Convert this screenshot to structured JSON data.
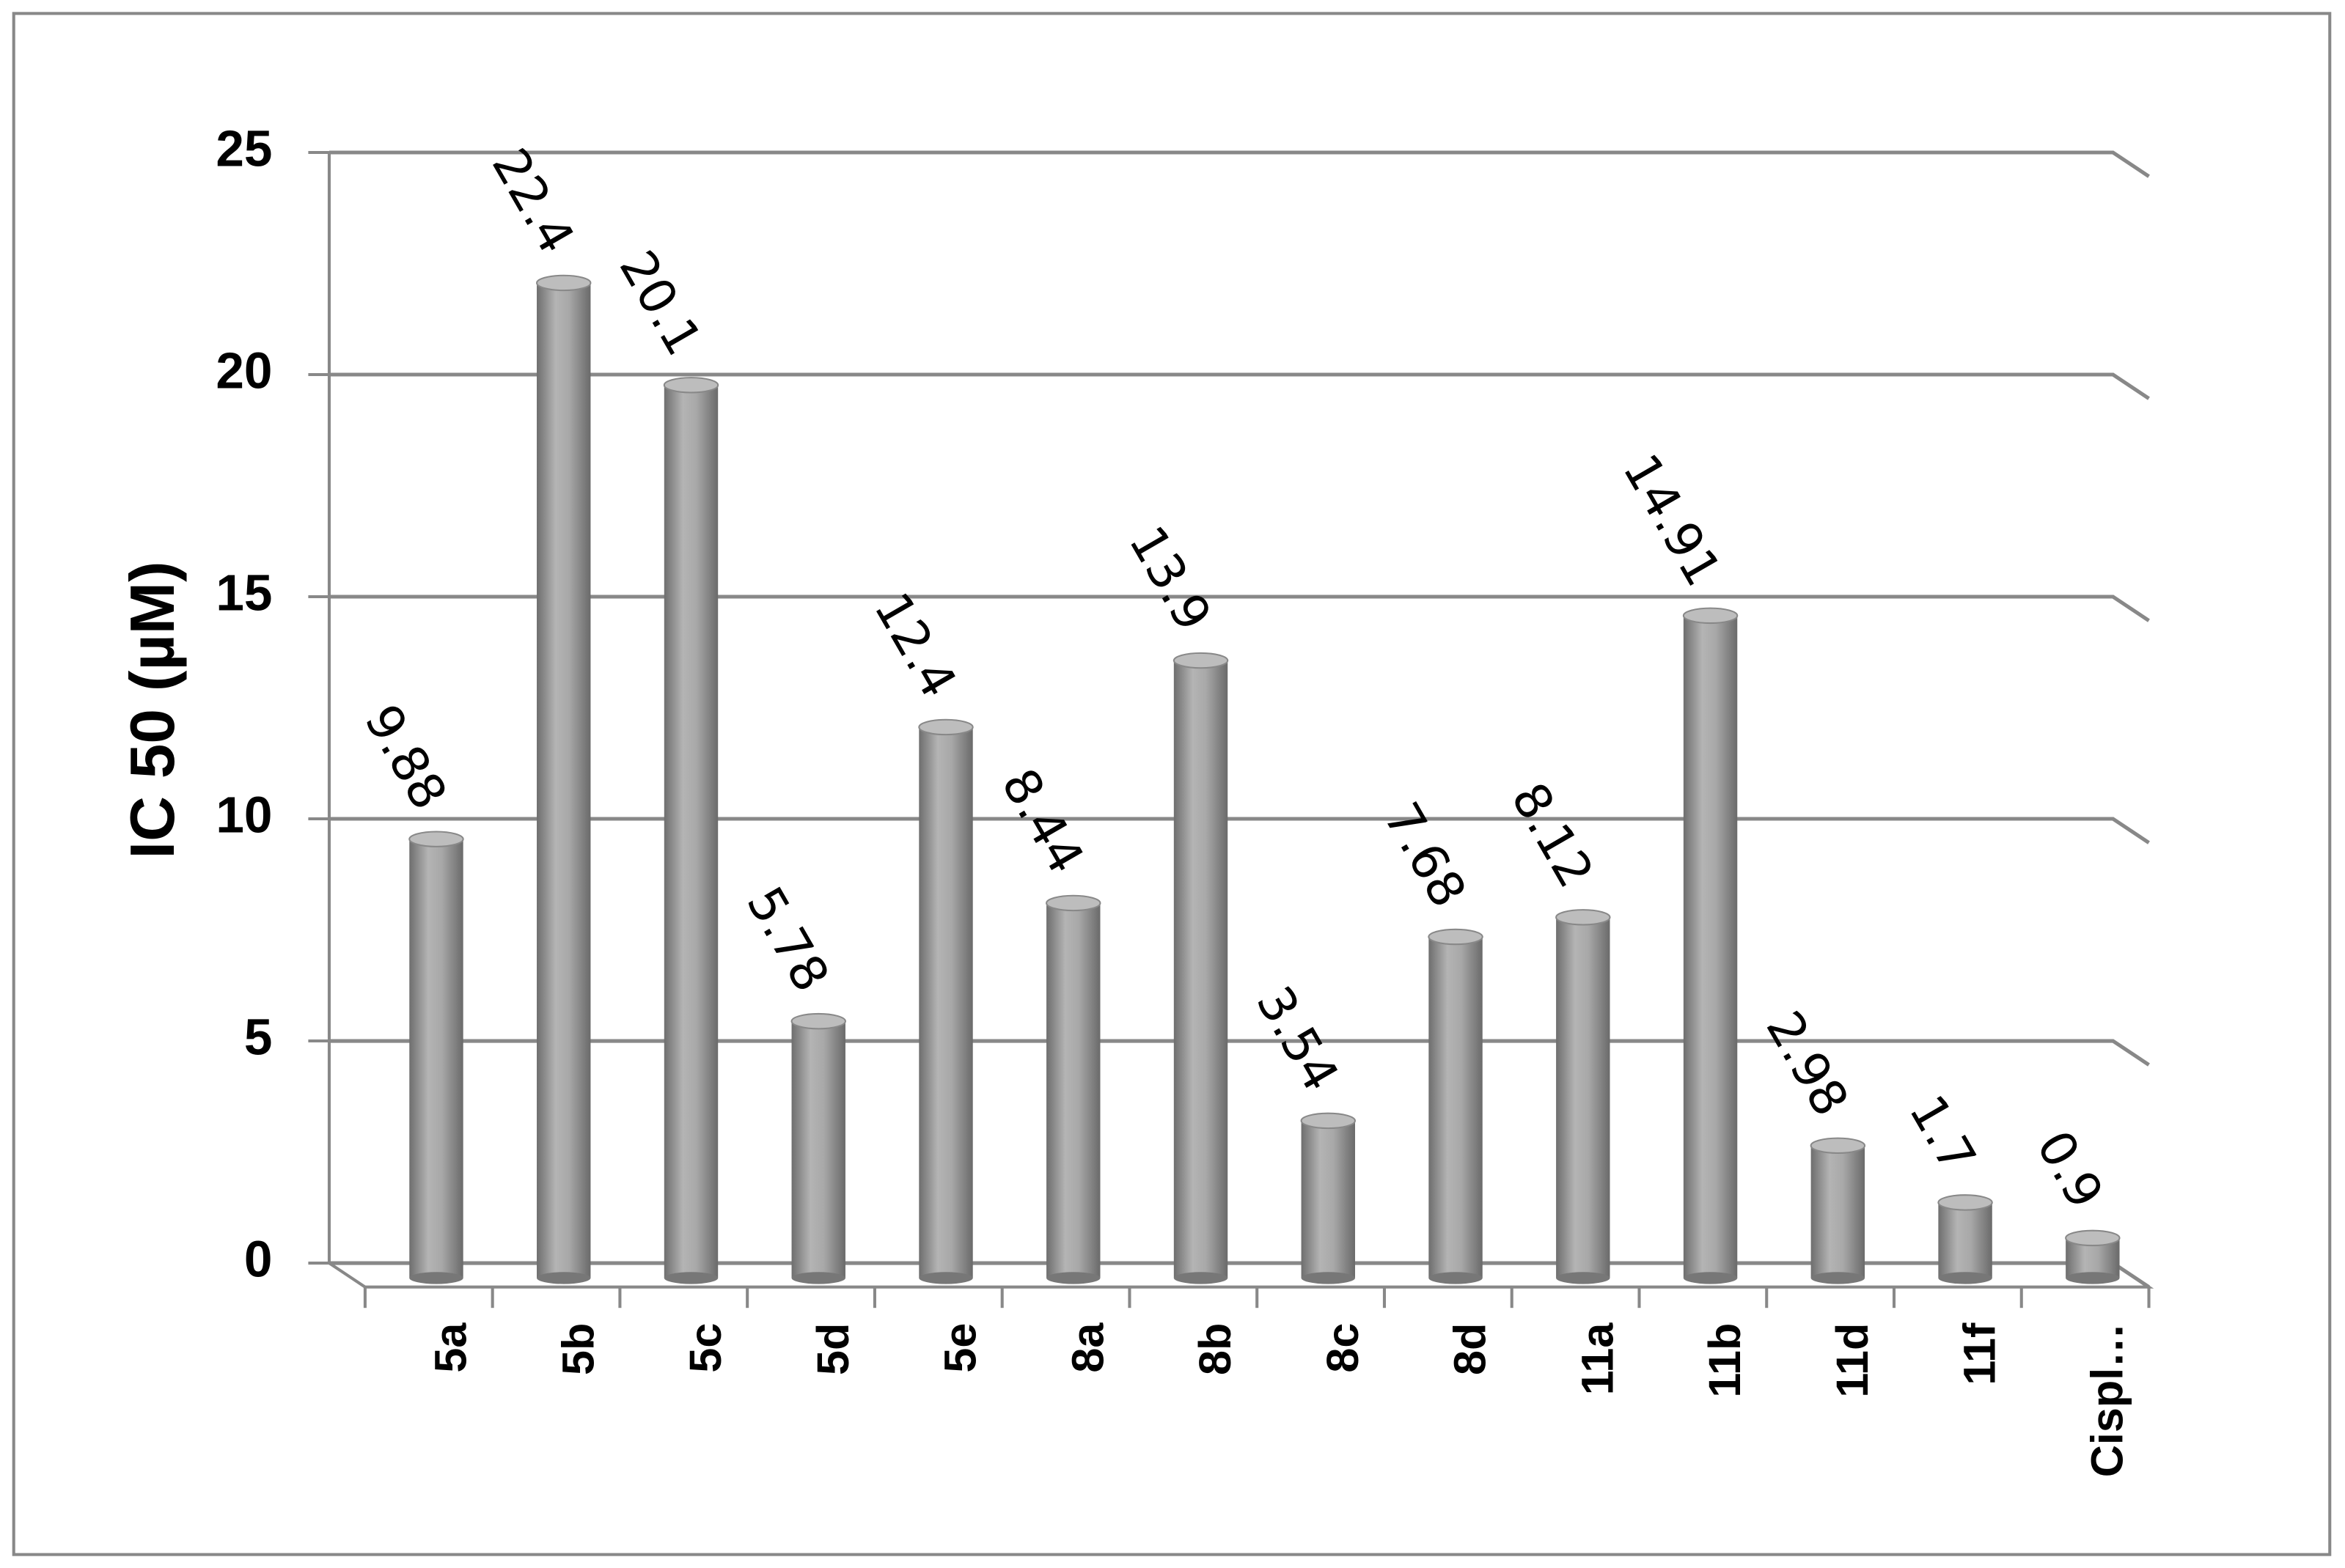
{
  "chart_data": {
    "type": "bar",
    "y_label": "IC 50 (µM)",
    "categories": [
      "5a",
      "5b",
      "5c",
      "5d",
      "5e",
      "8a",
      "8b",
      "8c",
      "8d",
      "11a",
      "11b",
      "11d",
      "11f",
      "Cispl…"
    ],
    "values": [
      9.88,
      22.4,
      20.1,
      5.78,
      12.4,
      8.44,
      13.9,
      3.54,
      7.68,
      8.12,
      14.91,
      2.98,
      1.7,
      0.9
    ],
    "color": "#9a9a9a",
    "ylim": [
      0,
      25
    ],
    "yticks": [
      0,
      5,
      10,
      15,
      20,
      25
    ],
    "grid": true
  }
}
